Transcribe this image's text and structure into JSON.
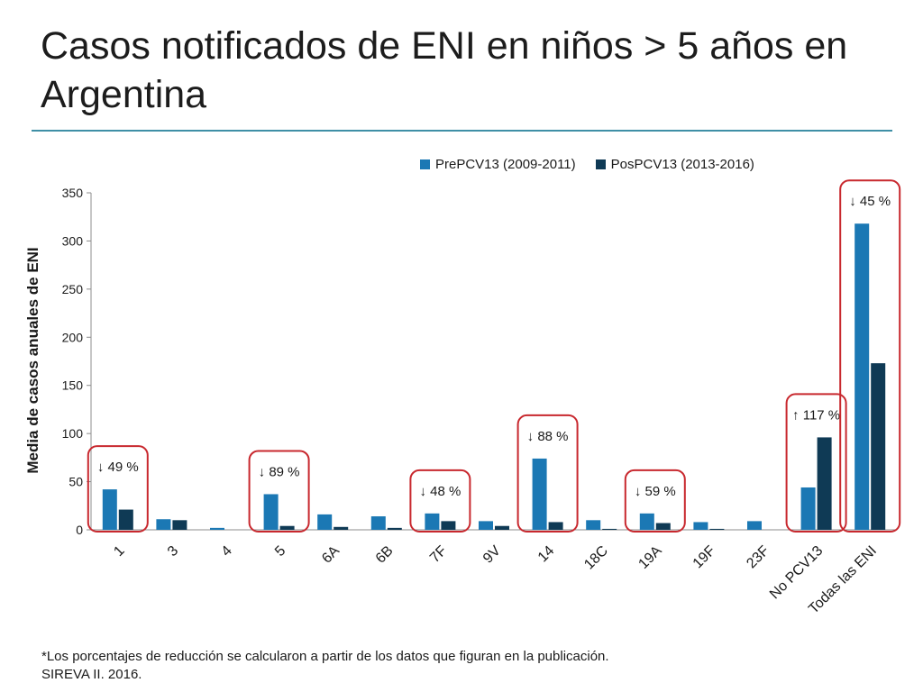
{
  "page": {
    "title": "Casos notificados de ENI en niños > 5 años en Argentina",
    "footnote_lines": [
      "*Los porcentajes de reducción se calcularon a partir de los datos que figuran en la publicación.",
      "SIREVA II. 2016."
    ]
  },
  "colors": {
    "pre": "#1b78b4",
    "pos": "#0f3a55",
    "box": "#c8282e",
    "rule": "#3f8fa6"
  },
  "chart_data": {
    "type": "bar",
    "ylabel": "Media de casos anuales de ENI",
    "ylim": [
      0,
      350
    ],
    "yticks": [
      0,
      50,
      100,
      150,
      200,
      250,
      300,
      350
    ],
    "categories": [
      "1",
      "3",
      "4",
      "5",
      "6A",
      "6B",
      "7F",
      "9V",
      "14",
      "18C",
      "19A",
      "19F",
      "23F",
      "No PCV13",
      "Todas las ENI"
    ],
    "series": [
      {
        "name": "PrePCV13 (2009-2011)",
        "values": [
          42,
          11,
          2,
          37,
          16,
          14,
          17,
          9,
          74,
          10,
          17,
          8,
          9,
          44,
          318
        ]
      },
      {
        "name": "PosPCV13 (2013-2016)",
        "values": [
          21,
          10,
          0,
          4,
          3,
          2,
          9,
          4,
          8,
          1,
          7,
          1,
          0,
          96,
          173
        ]
      }
    ],
    "legend_position": "top-right",
    "grid": false,
    "annotations": [
      {
        "category": "1",
        "text": "↓ 49 %"
      },
      {
        "category": "5",
        "text": "↓ 89 %"
      },
      {
        "category": "7F",
        "text": "↓ 48 %"
      },
      {
        "category": "14",
        "text": "↓ 88 %"
      },
      {
        "category": "19A",
        "text": "↓ 59 %"
      },
      {
        "category": "No PCV13",
        "text": "↑ 117 %"
      },
      {
        "category": "Todas las ENI",
        "text": "↓ 45 %"
      }
    ]
  }
}
